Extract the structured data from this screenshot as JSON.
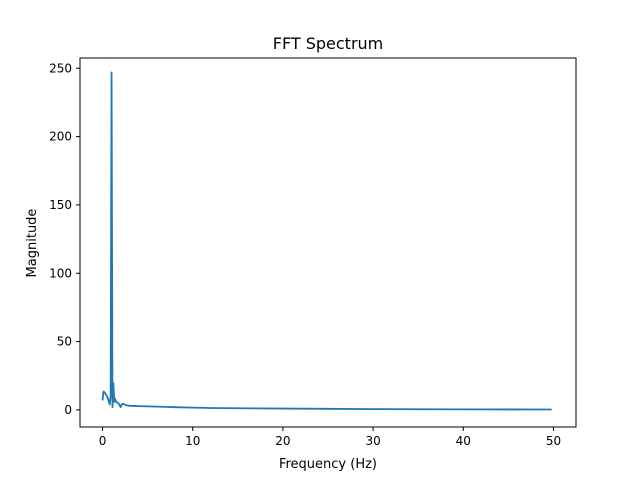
{
  "chart_data": {
    "type": "line",
    "title": "FFT Spectrum",
    "xlabel": "Frequency (Hz)",
    "ylabel": "Magnitude",
    "xlim": [
      -2.5,
      52.5
    ],
    "ylim": [
      -12.5,
      257.5
    ],
    "xticks": [
      0,
      10,
      20,
      30,
      40,
      50
    ],
    "yticks": [
      0,
      50,
      100,
      150,
      200,
      250
    ],
    "grid": false,
    "line_color": "#1f77b4",
    "series": [
      {
        "x": [
          0.0,
          0.1,
          0.2,
          0.3,
          0.4,
          0.5,
          0.6,
          0.7,
          0.8,
          0.9,
          1.0,
          1.1,
          1.2,
          1.3,
          1.4,
          1.5,
          1.6,
          1.7,
          1.8,
          1.9,
          2.0,
          2.1,
          2.2,
          2.3,
          2.4,
          2.5,
          2.6,
          2.7,
          2.8,
          2.9,
          3.0,
          3.5,
          4.0,
          5.0,
          6.0,
          7.0,
          8.0,
          10.0,
          12.0,
          15.0,
          20.0,
          25.0,
          30.0,
          35.0,
          40.0,
          45.0,
          49.8
        ],
        "y": [
          7.0,
          13.5,
          13.0,
          12.0,
          11.0,
          10.0,
          8.5,
          6.0,
          4.0,
          10.0,
          247.0,
          2.0,
          19.5,
          6.0,
          8.0,
          6.0,
          5.5,
          5.0,
          4.5,
          3.5,
          2.0,
          3.5,
          4.5,
          4.5,
          4.0,
          3.8,
          3.5,
          3.3,
          3.2,
          3.1,
          3.0,
          2.9,
          2.8,
          2.6,
          2.4,
          2.2,
          2.0,
          1.7,
          1.4,
          1.2,
          1.0,
          0.8,
          0.6,
          0.5,
          0.4,
          0.35,
          0.3
        ]
      }
    ]
  }
}
